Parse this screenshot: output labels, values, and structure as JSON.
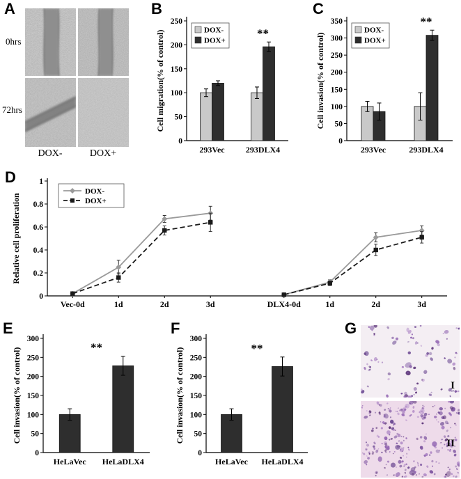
{
  "panels": {
    "A": {
      "label": "A",
      "row_labels": [
        "0hrs",
        "72hrs"
      ],
      "col_labels": [
        "DOX-",
        "DOX+"
      ]
    },
    "B": {
      "label": "B"
    },
    "C": {
      "label": "C"
    },
    "D": {
      "label": "D"
    },
    "E": {
      "label": "E"
    },
    "F": {
      "label": "F"
    },
    "G": {
      "label": "G",
      "images": [
        {
          "label": "I",
          "dot_count": 90,
          "bg": "#f4eef3"
        },
        {
          "label": "II",
          "dot_count": 280,
          "bg": "#eedbea"
        }
      ],
      "dot_palette": [
        "#6d4a93",
        "#8f62b0",
        "#a87fc2",
        "#5a3277",
        "#7d55a0"
      ]
    }
  },
  "colors": {
    "bar_light": "#c9c9c9",
    "bar_dark": "#2e2e2e",
    "line_gray": "#9a9a9a",
    "line_black": "#1a1a1a"
  },
  "chart_data": [
    {
      "id": "B",
      "type": "bar",
      "title": "",
      "ylabel": "Cell migration(% of control)",
      "xlabel": "",
      "categories": [
        "293Vec",
        "293DLX4"
      ],
      "series": [
        {
          "name": "DOX-",
          "color": "#c9c9c9",
          "values": [
            100,
            100
          ],
          "errors": [
            8,
            12
          ]
        },
        {
          "name": "DOX+",
          "color": "#2e2e2e",
          "values": [
            120,
            196
          ],
          "errors": [
            5,
            10
          ]
        }
      ],
      "ylim": [
        0,
        250
      ],
      "yticks": [
        0,
        50,
        100,
        150,
        200,
        250
      ],
      "grid": false,
      "legend": true,
      "legend_position": "top-left",
      "annotation": {
        "text": "**",
        "category_index": 1
      }
    },
    {
      "id": "C",
      "type": "bar",
      "title": "",
      "ylabel": "Cell invasion(% of control)",
      "xlabel": "",
      "categories": [
        "293Vec",
        "293DLX4"
      ],
      "series": [
        {
          "name": "DOX-",
          "color": "#c9c9c9",
          "values": [
            100,
            100
          ],
          "errors": [
            15,
            40
          ]
        },
        {
          "name": "DOX+",
          "color": "#2e2e2e",
          "values": [
            85,
            308
          ],
          "errors": [
            25,
            15
          ]
        }
      ],
      "ylim": [
        0,
        350
      ],
      "yticks": [
        0,
        50,
        100,
        150,
        200,
        250,
        300,
        350
      ],
      "grid": false,
      "legend": true,
      "legend_position": "top-left",
      "annotation": {
        "text": "**",
        "category_index": 1
      }
    },
    {
      "id": "D",
      "type": "line",
      "title": "",
      "ylabel": "Relative cell proliferation",
      "xlabel": "",
      "x_labels": [
        "Vec-0d",
        "1d",
        "2d",
        "3d",
        "DLX4-0d",
        "1d",
        "2d",
        "3d"
      ],
      "x_positions": [
        0,
        1,
        2,
        3,
        4.6,
        5.6,
        6.6,
        7.6
      ],
      "segment_start_indices": [
        0,
        4
      ],
      "ylim": [
        0,
        1
      ],
      "yticks": [
        0,
        0.2,
        0.4,
        0.6,
        0.8,
        1
      ],
      "grid": false,
      "legend": true,
      "legend_position": "top-left",
      "series": [
        {
          "name": "DOX-",
          "color": "#9a9a9a",
          "dash": "solid",
          "marker": "diamond",
          "values": [
            0.02,
            0.25,
            0.67,
            0.72,
            0.01,
            0.12,
            0.51,
            0.57
          ],
          "errors": [
            0.01,
            0.06,
            0.03,
            0.06,
            0.01,
            0.02,
            0.04,
            0.04
          ]
        },
        {
          "name": "DOX+",
          "color": "#1a1a1a",
          "dash": "dashed",
          "marker": "square",
          "values": [
            0.02,
            0.16,
            0.57,
            0.64,
            0.01,
            0.11,
            0.4,
            0.51
          ],
          "errors": [
            0.01,
            0.04,
            0.04,
            0.08,
            0.01,
            0.02,
            0.05,
            0.05
          ]
        }
      ]
    },
    {
      "id": "E",
      "type": "bar",
      "title": "",
      "ylabel": "Cell invasion(% of control)",
      "xlabel": "",
      "categories": [
        "HeLaVec",
        "HeLaDLX4"
      ],
      "series": [
        {
          "name": "",
          "color": "#2e2e2e",
          "values": [
            100,
            228
          ],
          "errors": [
            15,
            25
          ]
        }
      ],
      "ylim": [
        0,
        300
      ],
      "yticks": [
        0,
        50,
        100,
        150,
        200,
        250,
        300
      ],
      "grid": false,
      "legend": false,
      "annotation": {
        "text": "**",
        "category_index": 1
      }
    },
    {
      "id": "F",
      "type": "bar",
      "title": "",
      "ylabel": "Cell invasion(% of control)",
      "xlabel": "",
      "categories": [
        "HeLaVec",
        "HeLaDLX4"
      ],
      "series": [
        {
          "name": "",
          "color": "#2e2e2e",
          "values": [
            100,
            226
          ],
          "errors": [
            15,
            25
          ]
        }
      ],
      "ylim": [
        0,
        300
      ],
      "yticks": [
        0,
        50,
        100,
        150,
        200,
        250,
        300
      ],
      "grid": false,
      "legend": false,
      "annotation": {
        "text": "**",
        "category_index": 1
      }
    }
  ]
}
